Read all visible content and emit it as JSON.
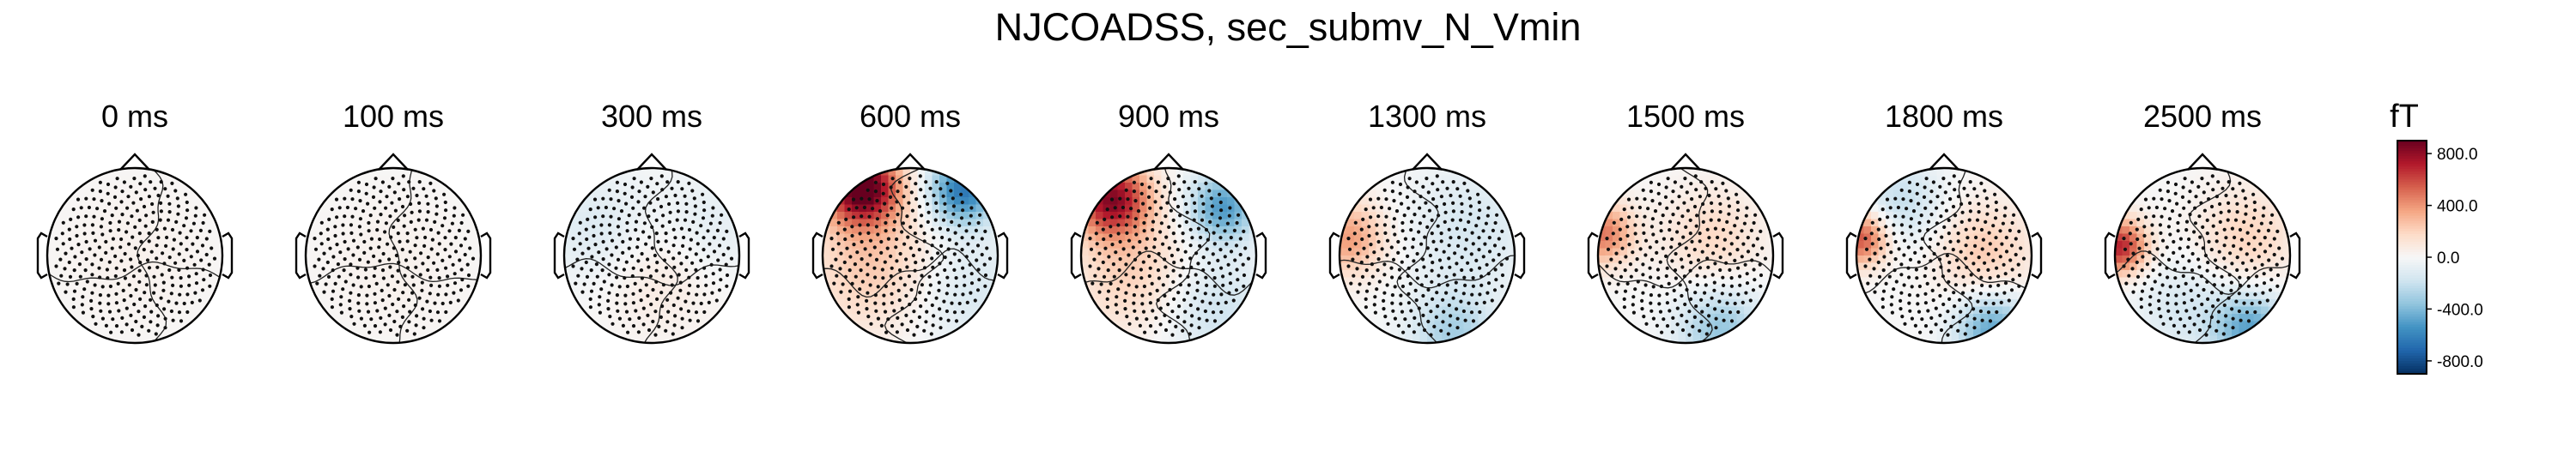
{
  "chart_data": {
    "type": "topomap",
    "title": "NJCOADSS, sec_submv_N_Vmin",
    "unit": "fT",
    "colormap": "RdBu_r",
    "clim": [
      -900,
      900
    ],
    "colorbar_ticks": [
      800.0,
      400.0,
      0.0,
      -400.0,
      -800.0
    ],
    "colorbar_tick_labels": [
      "800.0",
      "400.0",
      "0.0",
      "-400.0",
      "-800.0"
    ],
    "times": [
      "0 ms",
      "100 ms",
      "300 ms",
      "600 ms",
      "900 ms",
      "1300 ms",
      "1500 ms",
      "1800 ms",
      "2500 ms"
    ],
    "maps": [
      {
        "time": "0 ms",
        "level": 0.02,
        "sources": [
          {
            "u": 0.0,
            "v": 0.0,
            "amp": 40,
            "w": 0.6
          }
        ]
      },
      {
        "time": "100 ms",
        "level": 0.02,
        "sources": [
          {
            "u": 0.0,
            "v": 0.1,
            "amp": 40,
            "w": 0.6
          }
        ]
      },
      {
        "time": "300 ms",
        "level": 0.08,
        "sources": [
          {
            "u": 0.1,
            "v": 0.1,
            "amp": 120,
            "w": 0.5
          },
          {
            "u": -0.6,
            "v": -0.3,
            "amp": -140,
            "w": 0.45
          },
          {
            "u": 0.6,
            "v": -0.3,
            "amp": -120,
            "w": 0.45
          }
        ]
      },
      {
        "time": "600 ms",
        "level": 0.35,
        "sources": [
          {
            "u": -0.55,
            "v": -0.78,
            "amp": 950,
            "w": 0.3
          },
          {
            "u": 0.6,
            "v": -0.75,
            "amp": -650,
            "w": 0.28
          },
          {
            "u": -0.4,
            "v": 0.1,
            "amp": 250,
            "w": 0.55
          },
          {
            "u": 0.6,
            "v": 0.4,
            "amp": -160,
            "w": 0.5
          }
        ]
      },
      {
        "time": "900 ms",
        "level": 0.3,
        "sources": [
          {
            "u": -0.65,
            "v": -0.65,
            "amp": 800,
            "w": 0.3
          },
          {
            "u": 0.62,
            "v": -0.55,
            "amp": -520,
            "w": 0.28
          },
          {
            "u": -0.4,
            "v": 0.2,
            "amp": 220,
            "w": 0.5
          },
          {
            "u": 0.5,
            "v": 0.6,
            "amp": -200,
            "w": 0.45
          }
        ]
      },
      {
        "time": "1300 ms",
        "level": 0.18,
        "sources": [
          {
            "u": -0.9,
            "v": -0.2,
            "amp": 380,
            "w": 0.3
          },
          {
            "u": 0.3,
            "v": 0.9,
            "amp": -300,
            "w": 0.35
          },
          {
            "u": 0.5,
            "v": -0.3,
            "amp": -150,
            "w": 0.5
          }
        ]
      },
      {
        "time": "1500 ms",
        "level": 0.2,
        "sources": [
          {
            "u": -0.95,
            "v": -0.25,
            "amp": 480,
            "w": 0.25
          },
          {
            "u": 0.4,
            "v": 0.85,
            "amp": -350,
            "w": 0.35
          },
          {
            "u": 0.3,
            "v": -0.2,
            "amp": 180,
            "w": 0.4
          }
        ]
      },
      {
        "time": "1800 ms",
        "level": 0.25,
        "sources": [
          {
            "u": -0.95,
            "v": -0.2,
            "amp": 600,
            "w": 0.22
          },
          {
            "u": 0.55,
            "v": 0.85,
            "amp": -480,
            "w": 0.3
          },
          {
            "u": 0.45,
            "v": -0.05,
            "amp": 230,
            "w": 0.4
          },
          {
            "u": -0.5,
            "v": -0.6,
            "amp": -220,
            "w": 0.35
          }
        ]
      },
      {
        "time": "2500 ms",
        "level": 0.28,
        "sources": [
          {
            "u": -0.95,
            "v": -0.1,
            "amp": 700,
            "w": 0.22
          },
          {
            "u": 0.55,
            "v": 0.85,
            "amp": -480,
            "w": 0.3
          },
          {
            "u": 0.5,
            "v": -0.2,
            "amp": 200,
            "w": 0.4
          },
          {
            "u": -0.2,
            "v": 0.6,
            "amp": -150,
            "w": 0.4
          }
        ]
      }
    ]
  }
}
